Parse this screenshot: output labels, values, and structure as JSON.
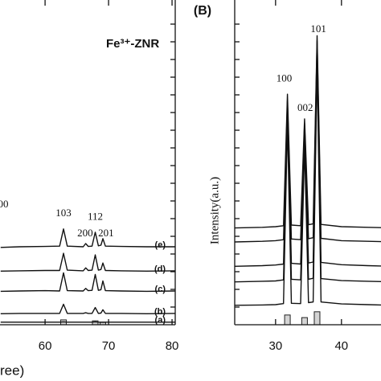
{
  "chart_data": [
    {
      "type": "line",
      "x_label": "ree)",
      "xlim": [
        52.9,
        80.5
      ],
      "ylim": [
        0,
        100
      ],
      "xticks": [
        60,
        70,
        80
      ],
      "x": [
        53,
        56,
        60,
        62.3,
        62.9,
        63.5,
        66,
        66.4,
        66.8,
        67.4,
        67.9,
        68.4,
        68.8,
        69.1,
        69.5,
        72,
        76,
        80.5
      ],
      "series": [
        {
          "name": "(a)",
          "color": "#111111",
          "values": [
            0.8,
            0.8,
            0.8,
            0.8,
            0.9,
            0.8,
            0.8,
            0.8,
            0.8,
            0.8,
            0.9,
            0.8,
            0.8,
            0.8,
            0.8,
            0.8,
            0.8,
            0.8
          ]
        },
        {
          "name": "(b)",
          "color": "#111111",
          "values": [
            3.4,
            3.5,
            3.5,
            3.5,
            6.3,
            3.5,
            3.5,
            3.7,
            3.5,
            3.5,
            5.3,
            3.5,
            3.6,
            4.6,
            3.5,
            3.5,
            3.4,
            3.5
          ]
        },
        {
          "name": "(c)",
          "color": "#111111",
          "values": [
            10.3,
            10.4,
            10.5,
            10.4,
            16,
            10.5,
            10.4,
            11.2,
            10.5,
            10.6,
            15.5,
            10.6,
            10.8,
            13.5,
            10.5,
            10.4,
            10.3,
            10.4
          ]
        },
        {
          "name": "(d)",
          "color": "#111111",
          "values": [
            16.5,
            16.6,
            16.7,
            16.7,
            22,
            16.8,
            16.6,
            17.5,
            16.7,
            16.8,
            21.5,
            16.8,
            17,
            19,
            16.7,
            16.6,
            16.5,
            16.6
          ]
        },
        {
          "name": "(e)",
          "color": "#111111",
          "values": [
            23.8,
            24,
            24.1,
            24.2,
            29.5,
            24.2,
            24,
            25,
            24.1,
            24.2,
            28.5,
            24.3,
            24.5,
            26.5,
            24.2,
            24.1,
            24,
            24
          ]
        }
      ],
      "reference": {
        "x": [
          62.9,
          67.9,
          69.1
        ],
        "values": [
          1.5,
          1.2,
          0.7
        ]
      },
      "annotations": [
        {
          "text": "00",
          "x": 53.4,
          "y": 36.9
        },
        {
          "text": "Fe³⁺-ZNR",
          "x": 73.8,
          "y": 86.4
        },
        {
          "text": "103",
          "x": 62.9,
          "y": 34.2
        },
        {
          "text": "200",
          "x": 66.3,
          "y": 28
        },
        {
          "text": "112",
          "x": 67.9,
          "y": 33
        },
        {
          "text": "201",
          "x": 69.6,
          "y": 28
        }
      ]
    },
    {
      "type": "line",
      "title": "(B)",
      "y_label": "Intensity(a.u.)",
      "xlim": [
        23.8,
        46
      ],
      "ylim": [
        0,
        100
      ],
      "xticks": [
        30,
        40
      ],
      "x": [
        23.8,
        28,
        30,
        31.2,
        31.8,
        32.4,
        33.8,
        34.4,
        35,
        35.7,
        36.3,
        36.9,
        40,
        44,
        46
      ],
      "series": [
        {
          "color": "#111111",
          "values": [
            6,
            6.1,
            6.2,
            6.5,
            62,
            6.6,
            6.5,
            55,
            6.8,
            7,
            80,
            7,
            6.4,
            6.2,
            6.1
          ]
        },
        {
          "color": "#111111",
          "values": [
            13.2,
            13.4,
            13.5,
            13.8,
            65,
            14,
            13.8,
            58,
            14,
            14.3,
            83,
            14.2,
            13.6,
            13.4,
            13.3
          ]
        },
        {
          "color": "#111111",
          "values": [
            18,
            18.2,
            18.4,
            18.7,
            67.5,
            18.9,
            18.7,
            60.5,
            19,
            19.3,
            85.5,
            19.2,
            18.5,
            18.2,
            18.1
          ]
        },
        {
          "color": "#111111",
          "values": [
            25.5,
            25.7,
            25.9,
            26.2,
            69,
            26.4,
            26.2,
            62,
            26.5,
            26.8,
            87.5,
            26.6,
            25.9,
            25.7,
            25.6
          ]
        },
        {
          "color": "#111111",
          "values": [
            29.8,
            30,
            30.2,
            30.5,
            71,
            30.7,
            30.5,
            63.4,
            30.8,
            31.1,
            89,
            30.9,
            30.2,
            30,
            29.9
          ]
        }
      ],
      "reference": {
        "x": [
          31.8,
          34.4,
          36.3
        ],
        "values": [
          3,
          2.2,
          4
        ]
      },
      "annotations": [
        {
          "text": "100",
          "x": 31.3,
          "y": 75.6
        },
        {
          "text": "002",
          "x": 34.5,
          "y": 66.6
        },
        {
          "text": "101",
          "x": 36.5,
          "y": 90.8
        }
      ]
    }
  ]
}
